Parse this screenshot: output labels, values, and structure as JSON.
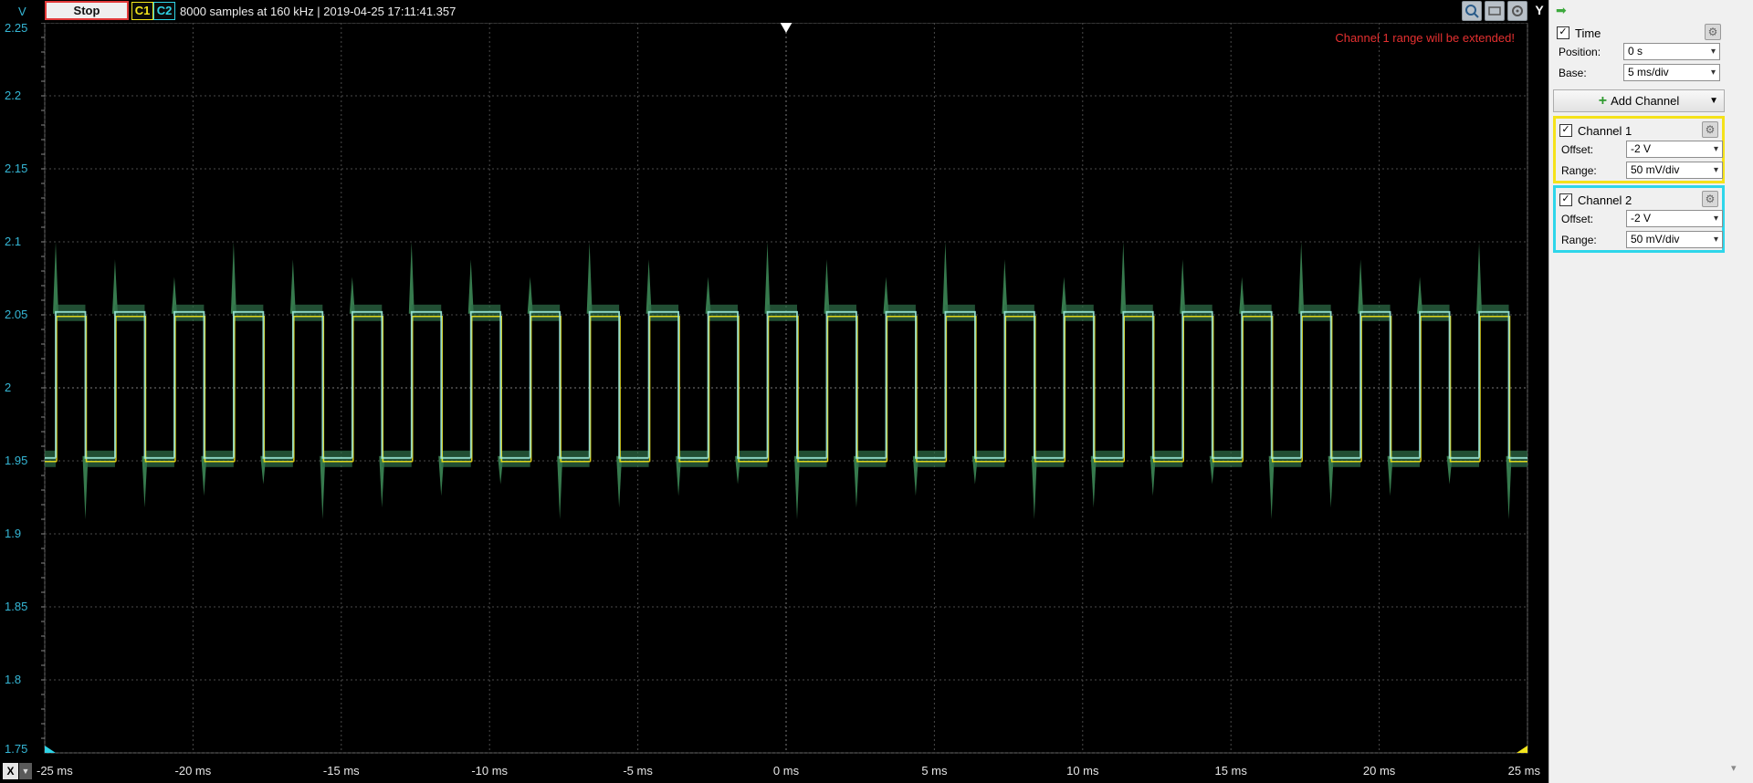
{
  "toolbar": {
    "unit": "V",
    "stop_label": "Stop",
    "c1_label": "C1",
    "c2_label": "C2",
    "status": "8000 samples at 160 kHz | 2019-04-25 17:11:41.357",
    "y_label": "Y"
  },
  "plot": {
    "warning": "Channel 1 range will be extended!",
    "y_ticks": [
      "2.25",
      "2.2",
      "2.15",
      "2.1",
      "2.05",
      "2",
      "1.95",
      "1.9",
      "1.85",
      "1.8",
      "1.75"
    ],
    "x_ticks": [
      "-25 ms",
      "-20 ms",
      "-15 ms",
      "-10 ms",
      "-5 ms",
      "0 ms",
      "5 ms",
      "10 ms",
      "15 ms",
      "20 ms",
      "25 ms"
    ],
    "colors": {
      "grid": "#4a4a4a",
      "axis_text_y": "#35b7d6",
      "axis_text_x": "#e6e6e6",
      "ch1": "#f2e41c",
      "ch2": "#2fd3e6",
      "overlay": "#3f8f5a"
    }
  },
  "x_control": {
    "label": "X"
  },
  "sidebar": {
    "time": {
      "title": "Time",
      "position_label": "Position:",
      "position_value": "0 s",
      "base_label": "Base:",
      "base_value": "5 ms/div"
    },
    "add_channel_label": "Add Channel",
    "channel1": {
      "title": "Channel 1",
      "offset_label": "Offset:",
      "offset_value": "-2 V",
      "range_label": "Range:",
      "range_value": "50 mV/div",
      "color": "#f5e21a"
    },
    "channel2": {
      "title": "Channel 2",
      "offset_label": "Offset:",
      "offset_value": "-2 V",
      "range_label": "Range:",
      "range_value": "50 mV/div",
      "color": "#2ed6ea"
    }
  },
  "icons": [
    "zoom-icon",
    "fit-icon",
    "settings-icon",
    "arrow-icon",
    "trigger-marker-icon"
  ]
}
